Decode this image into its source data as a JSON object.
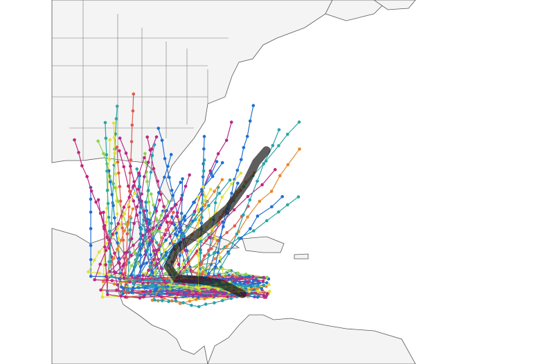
{
  "map": {
    "land_color": "#f4f4f4",
    "border_color": "#555555",
    "water_color": "#ffffff",
    "mean_track_color": "#1a1a1a",
    "ensemble_colors": [
      "#1f6fd1",
      "#1f6fd1",
      "#1f6fd1",
      "#c2257a",
      "#c2257a",
      "#e0e03a",
      "#29a0b0",
      "#2aa8a0",
      "#8fd14f",
      "#e8872a",
      "#e05a4f",
      "#b52a8a"
    ],
    "mean_track_lonlat": [
      [
        -72.9,
        15.0
      ],
      [
        -75.1,
        16.1
      ],
      [
        -77.4,
        16.5
      ],
      [
        -80.0,
        16.7
      ],
      [
        -80.9,
        18.0
      ],
      [
        -80.0,
        19.9
      ],
      [
        -77.4,
        21.8
      ],
      [
        -74.4,
        24.4
      ],
      [
        -72.5,
        27.1
      ],
      [
        -71.4,
        29.4
      ],
      [
        -70.3,
        30.7
      ]
    ]
  }
}
